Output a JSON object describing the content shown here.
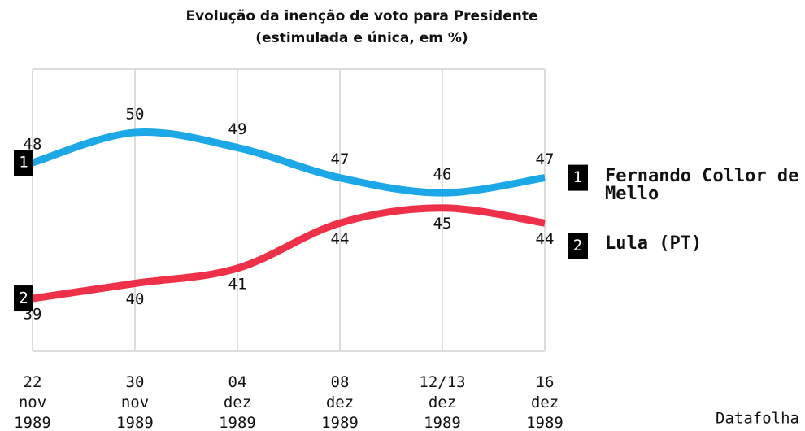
{
  "chart_data": {
    "type": "line",
    "title": "Evolução da inenção de voto para Presidente",
    "subtitle": "(estimulada e única, em %)",
    "categories": [
      "22 nov 1989",
      "30 nov 1989",
      "04 dez 1989",
      "08 dez 1989",
      "12/13 dez 1989",
      "16 dez 1989"
    ],
    "series": [
      {
        "name": "Fernando Collor de Mello",
        "number": "1",
        "color": "#1ca7e6",
        "values": [
          48,
          50,
          49,
          47,
          46,
          47
        ]
      },
      {
        "name": "Lula (PT)",
        "number": "2",
        "color": "#ef3049",
        "values": [
          39,
          40,
          41,
          44,
          45,
          44
        ]
      }
    ],
    "ylim": [
      35.5,
      54.2
    ],
    "grid": true,
    "source": "Datafolha"
  }
}
